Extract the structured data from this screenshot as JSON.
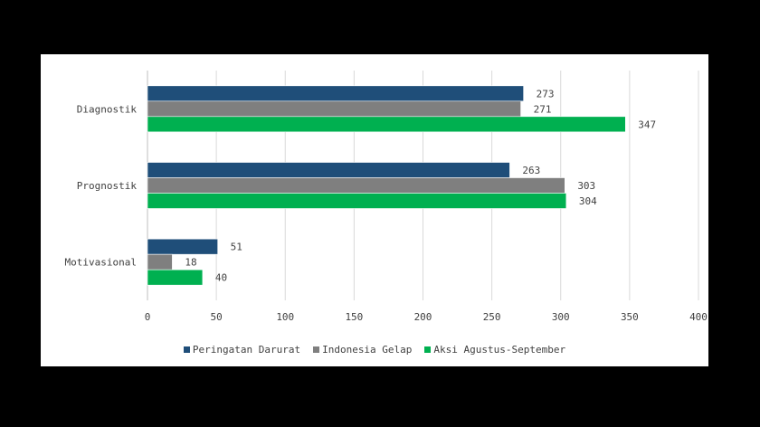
{
  "chart_data": {
    "type": "bar",
    "orientation": "horizontal",
    "categories": [
      "Diagnostik",
      "Prognostik",
      "Motivasional"
    ],
    "series": [
      {
        "name": "Peringatan Darurat",
        "color": "#1f4e79",
        "values": [
          273,
          263,
          51
        ]
      },
      {
        "name": "Indonesia Gelap",
        "color": "#7f7f7f",
        "values": [
          271,
          303,
          18
        ]
      },
      {
        "name": "Aksi Agustus-September",
        "color": "#00b050",
        "values": [
          347,
          304,
          40
        ]
      }
    ],
    "xlim": [
      0,
      400
    ],
    "xticks": [
      0,
      50,
      100,
      150,
      200,
      250,
      300,
      350,
      400
    ],
    "grid": "vertical",
    "legend_position": "bottom",
    "title": "",
    "xlabel": "",
    "ylabel": ""
  }
}
